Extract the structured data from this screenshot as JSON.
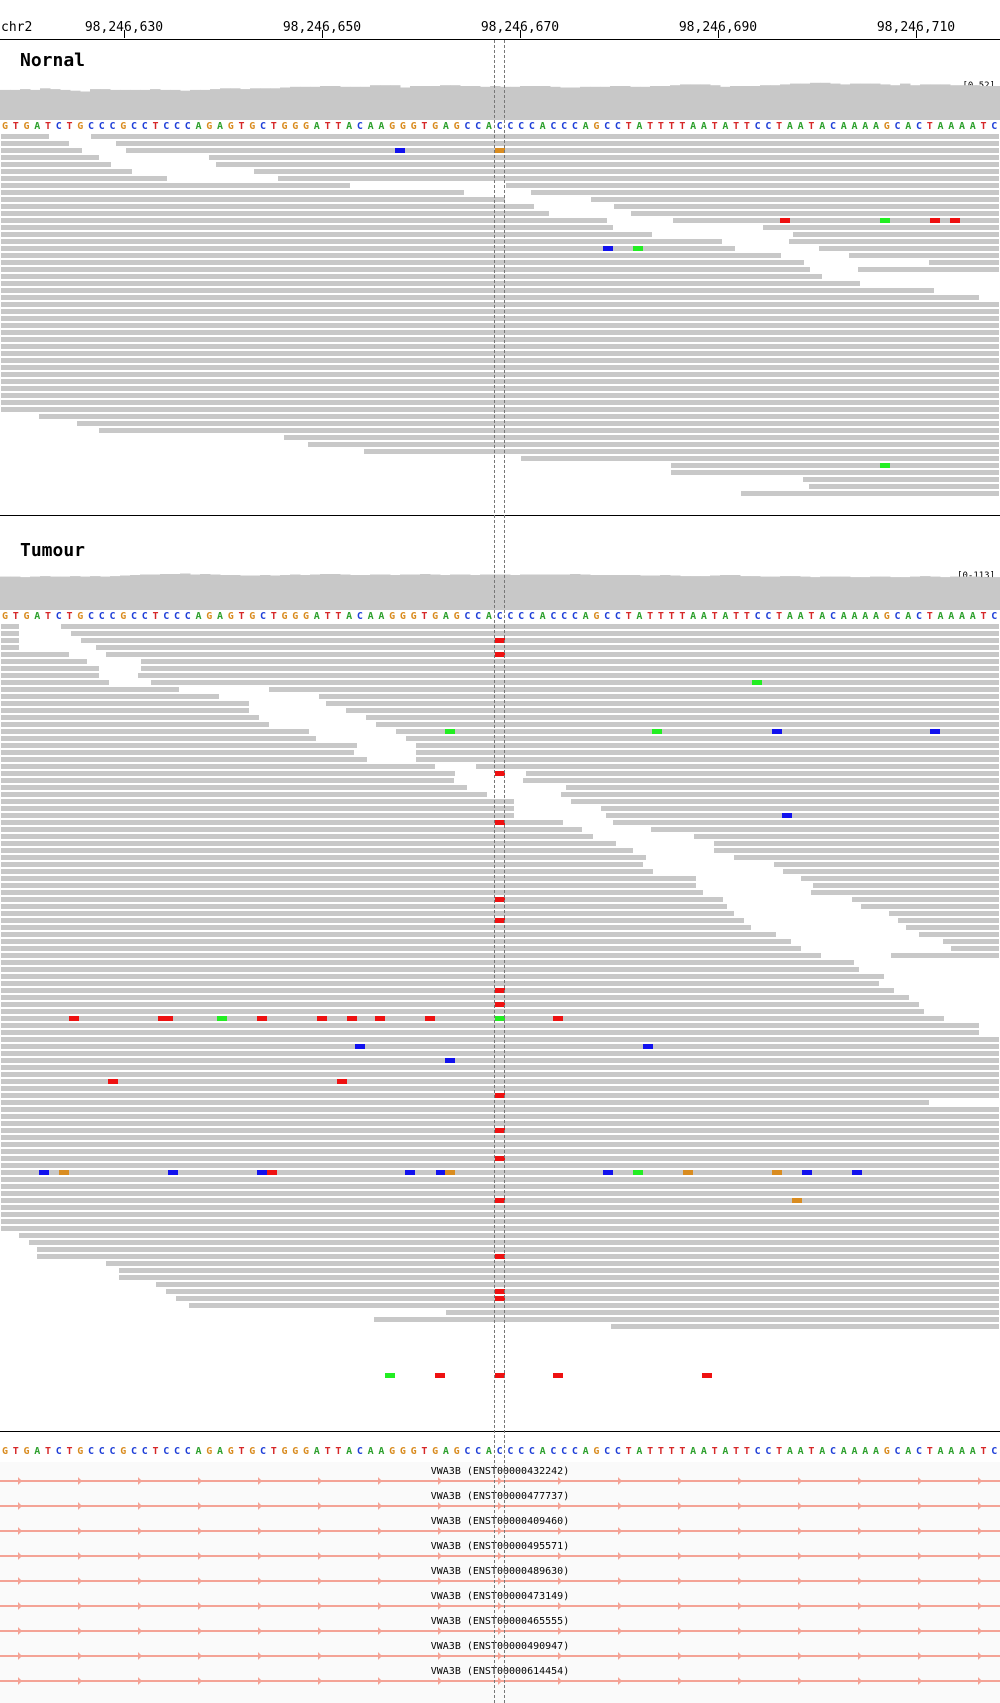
{
  "ruler": {
    "chromosome": "chr2",
    "ticks": [
      "98,246,630",
      "98,246,650",
      "98,246,670",
      "98,246,690",
      "98,246,710"
    ]
  },
  "reference_sequence": "GTGATCTGCCCGCCTCCCAGAGTGCTGGGATTACAAGGGTGAGCCACCCCACCCAGCCTATTTTAATATTCCTAATACAAAAGCACTAAAATC",
  "base_colors": {
    "A": "#2ca02c",
    "C": "#1f3fd8",
    "G": "#d98c20",
    "T": "#d62728"
  },
  "read_colors": {
    "read": "#c8c8c8",
    "coverage": "#c8c8c8"
  },
  "mismatch_colors": {
    "A": "#22ee22",
    "C": "#1111ee",
    "G": "#d98c20",
    "T": "#ee1111"
  },
  "tracks": [
    {
      "name": "Nornal",
      "coverage_range": "[0-52]"
    },
    {
      "name": "Tumour",
      "coverage_range": "[0-113]"
    }
  ],
  "genes": {
    "strand": "+",
    "color": "#f4a396",
    "transcripts": [
      "VWA3B (ENST00000432242)",
      "VWA3B (ENST00000477737)",
      "VWA3B (ENST00000409460)",
      "VWA3B (ENST00000495571)",
      "VWA3B (ENST00000489630)",
      "VWA3B (ENST00000473149)",
      "VWA3B (ENST00000465555)",
      "VWA3B (ENST00000490947)",
      "VWA3B (ENST00000614454)"
    ]
  },
  "normal_coverage": [
    38,
    38,
    39,
    38,
    40,
    39,
    38,
    37,
    36,
    39,
    39,
    38,
    38,
    38,
    38,
    39,
    38,
    38,
    37,
    38,
    38,
    39,
    40,
    40,
    39,
    40,
    40,
    40,
    41,
    42,
    42,
    42,
    43,
    43,
    42,
    42,
    42,
    44,
    44,
    44,
    41,
    43,
    43,
    43,
    44,
    44,
    43,
    43,
    42,
    43,
    42,
    42,
    43,
    43,
    43,
    42,
    41,
    41,
    42,
    42,
    42,
    43,
    43,
    42,
    42,
    43,
    43,
    44,
    45,
    45,
    45,
    44,
    42,
    43,
    43,
    43,
    44,
    44,
    45,
    46,
    46,
    47,
    47,
    46,
    45,
    46,
    46,
    46,
    45,
    44,
    46,
    44,
    45,
    45,
    45,
    44,
    44,
    44,
    43,
    43
  ],
  "tumour_coverage": [
    66,
    66,
    65,
    66,
    67,
    66,
    66,
    67,
    66,
    67,
    66,
    67,
    68,
    69,
    70,
    70,
    71,
    71,
    72,
    70,
    71,
    70,
    69,
    69,
    68,
    68,
    69,
    68,
    69,
    70,
    69,
    70,
    71,
    71,
    70,
    69,
    69,
    70,
    70,
    69,
    70,
    70,
    71,
    70,
    69,
    70,
    70,
    69,
    70,
    70,
    70,
    69,
    70,
    70,
    70,
    70,
    70,
    71,
    70,
    69,
    69,
    69,
    69,
    69,
    68,
    68,
    69,
    68,
    67,
    67,
    67,
    68,
    69,
    69,
    67,
    67,
    66,
    66,
    67,
    67,
    66,
    65,
    66,
    66,
    66,
    65,
    65,
    66,
    66,
    65,
    65,
    66,
    67,
    66,
    65,
    66,
    66,
    66,
    65,
    65
  ],
  "normal_reads": [
    [
      [
        0,
        50
      ],
      [
        90,
        1000
      ]
    ],
    [
      [
        0,
        70
      ],
      [
        115,
        1000
      ]
    ],
    [
      [
        0,
        83
      ],
      [
        125,
        1000
      ]
    ],
    [
      [
        0,
        100
      ],
      [
        208,
        1000
      ]
    ],
    [
      [
        0,
        112
      ],
      [
        215,
        1000
      ]
    ],
    [
      [
        0,
        133
      ],
      [
        253,
        1000
      ]
    ],
    [
      [
        0,
        168
      ],
      [
        277,
        1000
      ]
    ],
    [
      [
        0,
        351
      ],
      [
        505,
        1000
      ]
    ],
    [
      [
        0,
        465
      ],
      [
        530,
        1000
      ]
    ],
    [
      [
        0,
        506
      ],
      [
        590,
        1000
      ]
    ],
    [
      [
        0,
        535
      ],
      [
        613,
        1000
      ]
    ],
    [
      [
        0,
        550
      ],
      [
        630,
        1000
      ]
    ],
    [
      [
        0,
        608
      ],
      [
        672,
        1000
      ]
    ],
    [
      [
        0,
        614
      ],
      [
        762,
        1000
      ]
    ],
    [
      [
        0,
        653
      ],
      [
        792,
        1000
      ]
    ],
    [
      [
        0,
        723
      ],
      [
        788,
        1000
      ]
    ],
    [
      [
        0,
        736
      ],
      [
        818,
        1000
      ]
    ],
    [
      [
        0,
        782
      ],
      [
        848,
        1000
      ]
    ],
    [
      [
        0,
        805
      ],
      [
        928,
        1000
      ]
    ],
    [
      [
        0,
        811
      ],
      [
        857,
        1000
      ]
    ],
    [
      [
        0,
        823
      ],
      [
        1000,
        1000
      ]
    ],
    [
      [
        0,
        861
      ],
      [
        1000,
        1000
      ]
    ],
    [
      [
        0,
        935
      ],
      [
        1000,
        1000
      ]
    ],
    [
      [
        0,
        980
      ],
      [
        1000,
        1000
      ]
    ],
    [
      [
        0,
        1000
      ]
    ],
    [
      [
        0,
        1000
      ]
    ],
    [
      [
        0,
        1000
      ]
    ],
    [
      [
        0,
        1000
      ]
    ],
    [
      [
        0,
        1000
      ]
    ],
    [
      [
        0,
        1000
      ]
    ],
    [
      [
        0,
        1000
      ]
    ],
    [
      [
        0,
        1000
      ]
    ],
    [
      [
        0,
        1000
      ]
    ],
    [
      [
        0,
        1000
      ]
    ],
    [
      [
        0,
        1000
      ]
    ],
    [
      [
        0,
        1000
      ]
    ],
    [
      [
        0,
        1000
      ]
    ],
    [
      [
        0,
        1000
      ]
    ],
    [
      [
        0,
        1000
      ]
    ],
    [
      [
        0,
        1000
      ]
    ],
    [
      [
        38,
        1000
      ]
    ],
    [
      [
        76,
        1000
      ]
    ],
    [
      [
        98,
        1000
      ]
    ],
    [
      [
        283,
        1000
      ]
    ],
    [
      [
        307,
        1000
      ]
    ],
    [
      [
        363,
        1000
      ]
    ],
    [
      [
        520,
        1000
      ]
    ],
    [
      [
        670,
        1000
      ]
    ],
    [
      [
        670,
        1000
      ]
    ],
    [
      [
        802,
        1000
      ]
    ],
    [
      [
        808,
        1000
      ]
    ],
    [
      [
        740,
        1000
      ]
    ]
  ],
  "normal_mismatches": [
    [
      2,
      400,
      "C"
    ],
    [
      2,
      500,
      "G"
    ],
    [
      12,
      785,
      "T"
    ],
    [
      12,
      885,
      "A"
    ],
    [
      12,
      935,
      "T"
    ],
    [
      12,
      955,
      "T"
    ],
    [
      16,
      608,
      "C"
    ],
    [
      16,
      638,
      "A"
    ],
    [
      47,
      885,
      "A"
    ]
  ],
  "tumour_reads": [
    [
      [
        0,
        20
      ],
      [
        60,
        1000
      ]
    ],
    [
      [
        0,
        20
      ],
      [
        70,
        1000
      ]
    ],
    [
      [
        0,
        20
      ],
      [
        80,
        1000
      ]
    ],
    [
      [
        0,
        20
      ],
      [
        95,
        1000
      ]
    ],
    [
      [
        0,
        70
      ],
      [
        105,
        1000
      ]
    ],
    [
      [
        0,
        88
      ],
      [
        140,
        1000
      ]
    ],
    [
      [
        0,
        100
      ],
      [
        140,
        1000
      ]
    ],
    [
      [
        0,
        100
      ],
      [
        137,
        1000
      ]
    ],
    [
      [
        0,
        110
      ],
      [
        150,
        1000
      ]
    ],
    [
      [
        0,
        180
      ],
      [
        268,
        1000
      ]
    ],
    [
      [
        0,
        220
      ],
      [
        318,
        1000
      ]
    ],
    [
      [
        0,
        250
      ],
      [
        325,
        1000
      ]
    ],
    [
      [
        0,
        250
      ],
      [
        345,
        1000
      ]
    ],
    [
      [
        0,
        260
      ],
      [
        365,
        1000
      ]
    ],
    [
      [
        0,
        270
      ],
      [
        375,
        1000
      ]
    ],
    [
      [
        0,
        310
      ],
      [
        395,
        1000
      ]
    ],
    [
      [
        0,
        317
      ],
      [
        405,
        1000
      ]
    ],
    [
      [
        0,
        358
      ],
      [
        415,
        1000
      ]
    ],
    [
      [
        0,
        355
      ],
      [
        415,
        1000
      ]
    ],
    [
      [
        0,
        368
      ],
      [
        415,
        1000
      ]
    ],
    [
      [
        0,
        436
      ],
      [
        475,
        1000
      ]
    ],
    [
      [
        0,
        456
      ],
      [
        525,
        1000
      ]
    ],
    [
      [
        0,
        455
      ],
      [
        522,
        1000
      ]
    ],
    [
      [
        0,
        468
      ],
      [
        565,
        1000
      ]
    ],
    [
      [
        0,
        488
      ],
      [
        560,
        1000
      ]
    ],
    [
      [
        0,
        515
      ],
      [
        570,
        1000
      ]
    ],
    [
      [
        0,
        515
      ],
      [
        600,
        1000
      ]
    ],
    [
      [
        0,
        515
      ],
      [
        605,
        1000
      ]
    ],
    [
      [
        0,
        564
      ],
      [
        612,
        1000
      ]
    ],
    [
      [
        0,
        583
      ],
      [
        650,
        1000
      ]
    ],
    [
      [
        0,
        594
      ],
      [
        693,
        1000
      ]
    ],
    [
      [
        0,
        617
      ],
      [
        713,
        1000
      ]
    ],
    [
      [
        0,
        634
      ],
      [
        713,
        1000
      ]
    ],
    [
      [
        0,
        647
      ],
      [
        733,
        1000
      ]
    ],
    [
      [
        0,
        644
      ],
      [
        773,
        1000
      ]
    ],
    [
      [
        0,
        654
      ],
      [
        782,
        1000
      ]
    ],
    [
      [
        0,
        697
      ],
      [
        800,
        1000
      ]
    ],
    [
      [
        0,
        697
      ],
      [
        812,
        1000
      ]
    ],
    [
      [
        0,
        704
      ],
      [
        810,
        1000
      ]
    ],
    [
      [
        0,
        724
      ],
      [
        851,
        1000
      ]
    ],
    [
      [
        0,
        728
      ],
      [
        860,
        1000
      ]
    ],
    [
      [
        0,
        735
      ],
      [
        888,
        1000
      ]
    ],
    [
      [
        0,
        745
      ],
      [
        897,
        1000
      ]
    ],
    [
      [
        0,
        752
      ],
      [
        905,
        1000
      ]
    ],
    [
      [
        0,
        777
      ],
      [
        918,
        1000
      ]
    ],
    [
      [
        0,
        792
      ],
      [
        942,
        1000
      ]
    ],
    [
      [
        0,
        802
      ],
      [
        950,
        1000
      ]
    ],
    [
      [
        0,
        822
      ],
      [
        890,
        1000
      ]
    ],
    [
      [
        0,
        855
      ],
      [
        1000,
        1000
      ]
    ],
    [
      [
        0,
        860
      ],
      [
        1000,
        1000
      ]
    ],
    [
      [
        0,
        885
      ],
      [
        1000,
        1000
      ]
    ],
    [
      [
        0,
        880
      ],
      [
        1000,
        1000
      ]
    ],
    [
      [
        0,
        895
      ],
      [
        1000,
        1000
      ]
    ],
    [
      [
        0,
        910
      ],
      [
        1000,
        1000
      ]
    ],
    [
      [
        0,
        920
      ],
      [
        1000,
        1000
      ]
    ],
    [
      [
        0,
        925
      ],
      [
        1000,
        1000
      ]
    ],
    [
      [
        0,
        945
      ],
      [
        1000,
        1000
      ]
    ],
    [
      [
        0,
        980
      ],
      [
        1000,
        1000
      ]
    ],
    [
      [
        0,
        980
      ],
      [
        1000,
        1000
      ]
    ],
    [
      [
        0,
        1000
      ]
    ],
    [
      [
        0,
        1000
      ]
    ],
    [
      [
        0,
        1000
      ]
    ],
    [
      [
        0,
        1000
      ]
    ],
    [
      [
        0,
        1000
      ]
    ],
    [
      [
        0,
        1000
      ]
    ],
    [
      [
        0,
        1000
      ]
    ],
    [
      [
        0,
        1000
      ]
    ],
    [
      [
        0,
        1000
      ]
    ],
    [
      [
        0,
        930
      ]
    ],
    [
      [
        0,
        1000
      ]
    ],
    [
      [
        0,
        1000
      ]
    ],
    [
      [
        0,
        1000
      ]
    ],
    [
      [
        0,
        1000
      ]
    ],
    [
      [
        0,
        1000
      ]
    ],
    [
      [
        0,
        1000
      ]
    ],
    [
      [
        0,
        1000
      ]
    ],
    [
      [
        0,
        1000
      ]
    ],
    [
      [
        0,
        1000
      ]
    ],
    [
      [
        0,
        1000
      ]
    ],
    [
      [
        0,
        1000
      ]
    ],
    [
      [
        0,
        1000
      ]
    ],
    [
      [
        0,
        1000
      ]
    ],
    [
      [
        0,
        1000
      ]
    ],
    [
      [
        0,
        1000
      ]
    ],
    [
      [
        0,
        1000
      ]
    ],
    [
      [
        0,
        1000
      ]
    ],
    [
      [
        0,
        1000
      ]
    ],
    [
      [
        18,
        1000
      ]
    ],
    [
      [
        28,
        1000
      ]
    ],
    [
      [
        36,
        1000
      ]
    ],
    [
      [
        36,
        1000
      ]
    ],
    [
      [
        105,
        1000
      ]
    ],
    [
      [
        118,
        1000
      ]
    ],
    [
      [
        118,
        1000
      ]
    ],
    [
      [
        155,
        1000
      ]
    ],
    [
      [
        165,
        1000
      ]
    ],
    [
      [
        175,
        1000
      ]
    ],
    [
      [
        188,
        1000
      ]
    ],
    [
      [
        445,
        1000
      ]
    ],
    [
      [
        373,
        1000
      ]
    ],
    [
      [
        610,
        1000
      ]
    ]
  ],
  "tumour_mismatches": [
    [
      2,
      500,
      "T"
    ],
    [
      4,
      500,
      "T"
    ],
    [
      8,
      757,
      "A"
    ],
    [
      15,
      450,
      "A"
    ],
    [
      15,
      657,
      "A"
    ],
    [
      15,
      777,
      "C"
    ],
    [
      15,
      935,
      "C"
    ],
    [
      21,
      500,
      "T"
    ],
    [
      27,
      787,
      "C"
    ],
    [
      28,
      500,
      "T"
    ],
    [
      39,
      500,
      "T"
    ],
    [
      42,
      500,
      "T"
    ],
    [
      52,
      500,
      "T"
    ],
    [
      54,
      500,
      "T"
    ],
    [
      56,
      74,
      "T"
    ],
    [
      56,
      163,
      "T"
    ],
    [
      56,
      168,
      "T"
    ],
    [
      56,
      222,
      "A"
    ],
    [
      56,
      262,
      "T"
    ],
    [
      56,
      322,
      "T"
    ],
    [
      56,
      352,
      "T"
    ],
    [
      56,
      380,
      "T"
    ],
    [
      56,
      430,
      "T"
    ],
    [
      56,
      500,
      "A"
    ],
    [
      56,
      558,
      "T"
    ],
    [
      60,
      360,
      "C"
    ],
    [
      60,
      648,
      "C"
    ],
    [
      62,
      450,
      "C"
    ],
    [
      65,
      113,
      "T"
    ],
    [
      65,
      342,
      "T"
    ],
    [
      67,
      500,
      "T"
    ],
    [
      72,
      500,
      "T"
    ],
    [
      76,
      500,
      "T"
    ],
    [
      78,
      44,
      "C"
    ],
    [
      78,
      64,
      "G"
    ],
    [
      78,
      173,
      "C"
    ],
    [
      78,
      262,
      "C"
    ],
    [
      78,
      272,
      "T"
    ],
    [
      78,
      410,
      "C"
    ],
    [
      78,
      441,
      "C"
    ],
    [
      78,
      450,
      "G"
    ],
    [
      78,
      608,
      "C"
    ],
    [
      78,
      638,
      "A"
    ],
    [
      78,
      688,
      "G"
    ],
    [
      78,
      777,
      "G"
    ],
    [
      78,
      807,
      "C"
    ],
    [
      78,
      857,
      "C"
    ],
    [
      82,
      500,
      "T"
    ],
    [
      82,
      797,
      "G"
    ],
    [
      90,
      500,
      "T"
    ],
    [
      95,
      500,
      "T"
    ],
    [
      96,
      500,
      "T"
    ],
    [
      107,
      390,
      "A"
    ],
    [
      107,
      440,
      "T"
    ],
    [
      107,
      500,
      "T"
    ],
    [
      107,
      558,
      "T"
    ],
    [
      107,
      707,
      "T"
    ]
  ]
}
